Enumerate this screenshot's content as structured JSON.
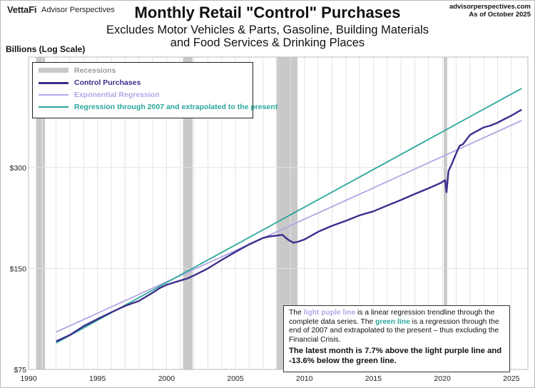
{
  "header": {
    "brand": "VettaFi",
    "brand_sub": "Advisor Perspectives",
    "title": "Monthly Retail \"Control\" Purchases",
    "subtitle_line1": "Excludes Motor Vehicles & Parts, Gasoline, Building Materials",
    "subtitle_line2": "and Food Services & Drinking Places",
    "source_line1": "advisorperspectives.com",
    "source_line2": "As of October 2025"
  },
  "colors": {
    "control": "#3a2f8c",
    "exp_regression": "#b3a6e6",
    "green_regression": "#2aa79b",
    "recession": "#c9c9c9",
    "grid": "#e3e3e3"
  },
  "legend": {
    "recessions": "Recessions",
    "control": "Control Purchases",
    "exp_regression": "Exponential Regression",
    "green_regression": "Regression through 2007 and extrapolated to the present"
  },
  "note": {
    "p1_a": "The ",
    "p1_purple": "light puple line",
    "p1_b": " is a linear regression trendline  through the complete data series. The ",
    "p1_green": "green line",
    "p1_c": " is a regression through the end of 2007 and extrapolated to the present  – thus excluding the Financial Crisis.",
    "p2": "The latest month is 7.7% above the light purple line and -13.6% below the green line."
  },
  "chart_data": {
    "type": "line",
    "title": "Monthly Retail \"Control\" Purchases",
    "ylabel": "Billions (Log Scale)",
    "xlabel": "",
    "y_scale": "log",
    "ylim": [
      75,
      640
    ],
    "xlim": [
      1990,
      2026.2
    ],
    "x_ticks": [
      1990,
      1995,
      2000,
      2005,
      2010,
      2015,
      2020,
      2025
    ],
    "x_tick_labels": [
      "1990",
      "1995",
      "2000",
      "2005",
      "2010",
      "2015",
      "2020",
      "2025"
    ],
    "y_ticks": [
      75,
      150,
      300
    ],
    "y_tick_labels": [
      "$75",
      "$150",
      "$300"
    ],
    "grid": true,
    "legend_position": "top-left",
    "recessions": [
      [
        1990.55,
        1991.2
      ],
      [
        2001.2,
        2001.9
      ],
      [
        2007.95,
        2009.5
      ],
      [
        2020.1,
        2020.35
      ]
    ],
    "series": [
      {
        "name": "Control Purchases",
        "x": [
          1992.0,
          1993.0,
          1994.0,
          1995.0,
          1996.0,
          1997.0,
          1998.0,
          1999.0,
          1999.5,
          2000.0,
          2000.5,
          2001.0,
          2001.5,
          2002.0,
          2003.0,
          2004.0,
          2005.0,
          2006.0,
          2007.0,
          2007.5,
          2008.0,
          2008.4,
          2008.8,
          2009.2,
          2009.5,
          2010.0,
          2011.0,
          2012.0,
          2013.0,
          2014.0,
          2015.0,
          2016.0,
          2017.0,
          2018.0,
          2019.0,
          2019.9,
          2020.2,
          2020.3,
          2020.45,
          2020.7,
          2021.0,
          2021.25,
          2021.5,
          2022.0,
          2022.5,
          2023.0,
          2023.5,
          2024.0,
          2024.5,
          2025.0,
          2025.5,
          2025.75
        ],
        "y": [
          91,
          95,
          101,
          106,
          111,
          116,
          120,
          127,
          131,
          134,
          136,
          138,
          140,
          143,
          150,
          159,
          168,
          177,
          185,
          187,
          188,
          189,
          183,
          179,
          180,
          183,
          193,
          201,
          208,
          216,
          222,
          231,
          240,
          250,
          260,
          270,
          275,
          253,
          293,
          308,
          330,
          348,
          352,
          375,
          385,
          395,
          400,
          408,
          418,
          428,
          440,
          446
        ]
      },
      {
        "name": "Exponential Regression",
        "x": [
          1992.0,
          2025.75
        ],
        "y": [
          97,
          414
        ]
      },
      {
        "name": "Regression through 2007 and extrapolated to the present",
        "x": [
          1992.0,
          2025.75
        ],
        "y": [
          90,
          516
        ]
      }
    ]
  }
}
